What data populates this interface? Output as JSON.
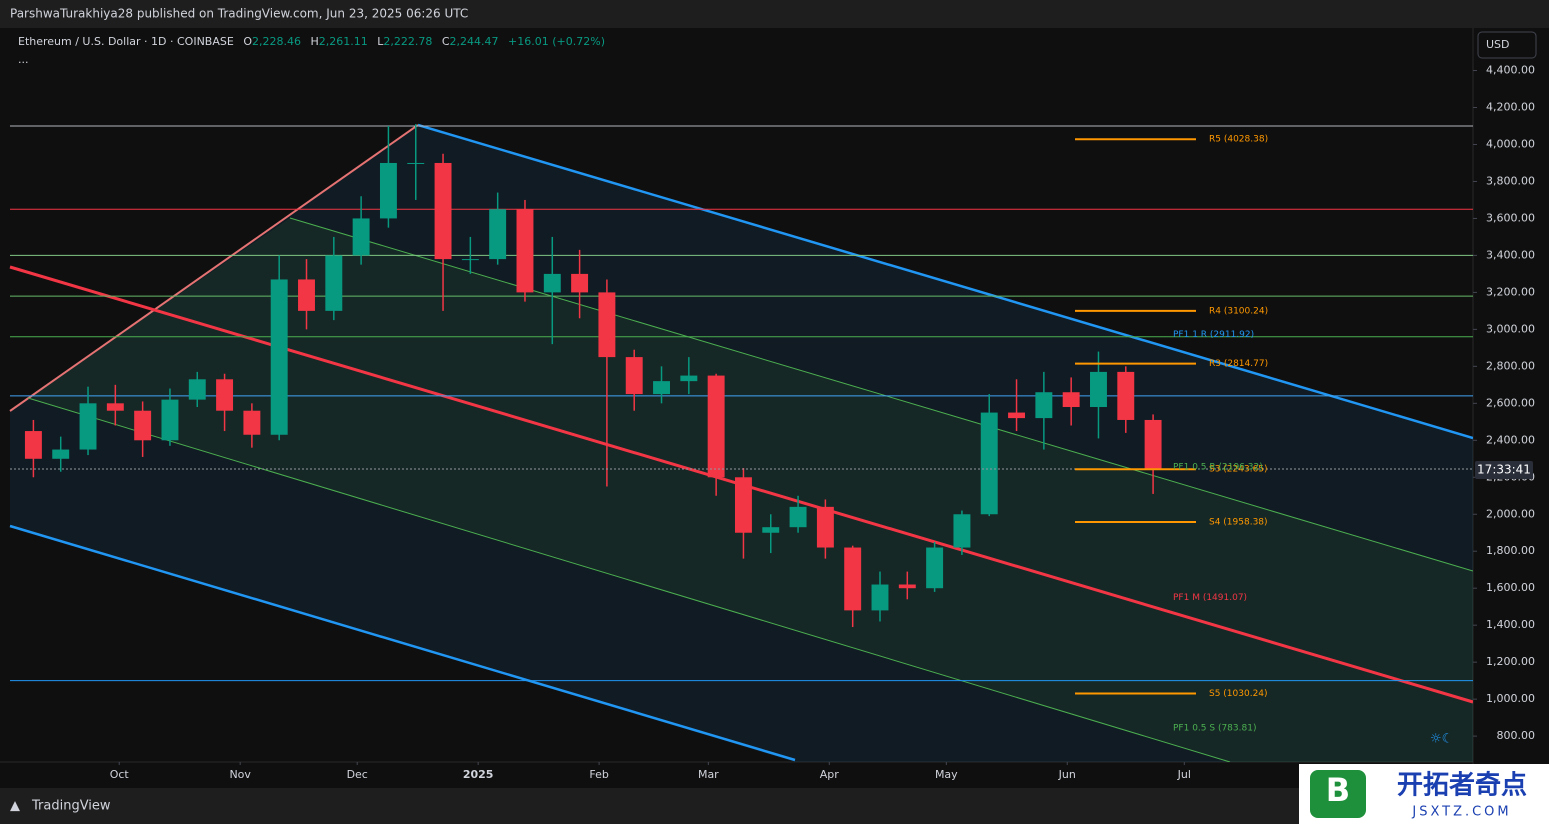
{
  "header": {
    "publisher": "ParshwaTurakhiya28 published on TradingView.com, Jun 23, 2025 06:26 UTC"
  },
  "legend": {
    "symbol": "Ethereum / U.S. Dollar · 1D · COINBASE",
    "o": "O",
    "open": "2,228.46",
    "h": "H",
    "high": "2,261.11",
    "l": "L",
    "low": "2,222.78",
    "c": "C",
    "close": "2,244.47",
    "change": "+16.01 (+0.72%)",
    "more": "..."
  },
  "currency": "USD",
  "countdown": "17:33:41",
  "footer": "TradingView",
  "watermark": {
    "name": "开拓者奇点",
    "url": "JSXTZ.COM",
    "logo": "B"
  },
  "chart_data": {
    "type": "candlestick",
    "up_color": "#089981",
    "down_color": "#f23645",
    "grid": false,
    "xlim": [
      -28,
      347
    ],
    "ylim": [
      660,
      4630
    ],
    "xticks": [
      {
        "value": 0,
        "label": "Oct"
      },
      {
        "value": 31,
        "label": "Nov"
      },
      {
        "value": 61,
        "label": "Dec"
      },
      {
        "value": 92,
        "label": "2025"
      },
      {
        "value": 123,
        "label": "Feb"
      },
      {
        "value": 151,
        "label": "Mar"
      },
      {
        "value": 182,
        "label": "Apr"
      },
      {
        "value": 212,
        "label": "May"
      },
      {
        "value": 243,
        "label": "Jun"
      },
      {
        "value": 273,
        "label": "Jul"
      }
    ],
    "yticks": [
      {
        "value": 800,
        "label": "800.00"
      },
      {
        "value": 1000,
        "label": "1,000.00"
      },
      {
        "value": 1200,
        "label": "1,200.00"
      },
      {
        "value": 1400,
        "label": "1,400.00"
      },
      {
        "value": 1600,
        "label": "1,600.00"
      },
      {
        "value": 1800,
        "label": "1,800.00"
      },
      {
        "value": 2000,
        "label": "2,000.00"
      },
      {
        "value": 2200,
        "label": "2,200.00"
      },
      {
        "value": 2400,
        "label": "2,400.00"
      },
      {
        "value": 2600,
        "label": "2,600.00"
      },
      {
        "value": 2800,
        "label": "2,800.00"
      },
      {
        "value": 3000,
        "label": "3,000.00"
      },
      {
        "value": 3200,
        "label": "3,200.00"
      },
      {
        "value": 3400,
        "label": "3,400.00"
      },
      {
        "value": 3600,
        "label": "3,600.00"
      },
      {
        "value": 3800,
        "label": "3,800.00"
      },
      {
        "value": 4000,
        "label": "4,000.00"
      },
      {
        "value": 4200,
        "label": "4,200.00"
      },
      {
        "value": 4400,
        "label": "4,400.00"
      }
    ],
    "candles": {
      "x": [
        -22,
        -15,
        -8,
        -1,
        6,
        13,
        20,
        27,
        34,
        41,
        48,
        55,
        62,
        69,
        76,
        83,
        90,
        97,
        104,
        111,
        118,
        125,
        132,
        139,
        146,
        153,
        160,
        167,
        174,
        181,
        188,
        195,
        202,
        209,
        216,
        223,
        230,
        237,
        244,
        251,
        258,
        265
      ],
      "open": [
        2450,
        2300,
        2350,
        2600,
        2560,
        2400,
        2620,
        2730,
        2560,
        2430,
        3270,
        3100,
        3400,
        3600,
        3900,
        3900,
        3380,
        3380,
        3650,
        3200,
        3300,
        3200,
        2850,
        2650,
        2720,
        2750,
        2200,
        1900,
        1930,
        2040,
        1820,
        1480,
        1620,
        1600,
        1820,
        2000,
        2550,
        2520,
        2660,
        2580,
        2770,
        2510
      ],
      "high": [
        2510,
        2420,
        2690,
        2700,
        2610,
        2680,
        2770,
        2760,
        2600,
        3400,
        3380,
        3500,
        3720,
        4100,
        4110,
        3950,
        3500,
        3740,
        3700,
        3500,
        3430,
        3270,
        2890,
        2800,
        2850,
        2760,
        2250,
        2000,
        2100,
        2080,
        1830,
        1690,
        1690,
        1850,
        2020,
        2650,
        2730,
        2770,
        2740,
        2880,
        2800,
        2540
      ],
      "low": [
        2200,
        2230,
        2320,
        2480,
        2310,
        2370,
        2580,
        2450,
        2360,
        2400,
        3000,
        3050,
        3350,
        3550,
        3700,
        3100,
        3300,
        3350,
        3150,
        2920,
        3060,
        2150,
        2560,
        2600,
        2650,
        2100,
        1760,
        1790,
        1900,
        1760,
        1390,
        1420,
        1540,
        1580,
        1780,
        1990,
        2450,
        2350,
        2480,
        2410,
        2440,
        2110
      ],
      "close": [
        2300,
        2350,
        2600,
        2560,
        2400,
        2620,
        2730,
        2560,
        2430,
        3270,
        3100,
        3400,
        3600,
        3900,
        3900,
        3380,
        3380,
        3650,
        3200,
        3300,
        3200,
        2850,
        2650,
        2720,
        2750,
        2200,
        1900,
        1930,
        2040,
        1820,
        1480,
        1620,
        1600,
        1820,
        2000,
        2550,
        2520,
        2660,
        2580,
        2770,
        2510,
        2244.47
      ]
    },
    "last_price": 2244.47,
    "horizontal_lines": [
      {
        "value": 4100,
        "color": "#b2b5be"
      },
      {
        "value": 3650,
        "color": "#f23645"
      },
      {
        "value": 3400,
        "color": "#81c784"
      },
      {
        "value": 3180,
        "color": "#66bb6a"
      },
      {
        "value": 2960,
        "color": "#4caf50"
      },
      {
        "value": 2640,
        "color": "#42a5f5"
      },
      {
        "value": 1100,
        "color": "#2196f3"
      }
    ],
    "pivots": [
      {
        "label": "R5 (4028.38)",
        "value": 4028.38
      },
      {
        "label": "R4 (3100.24)",
        "value": 3100.24
      },
      {
        "label": "R3 (2814.77)",
        "value": 2814.77
      },
      {
        "label": "S3 (2243.65)",
        "value": 2243.65
      },
      {
        "label": "S4 (1958.38)",
        "value": 1958.38
      },
      {
        "label": "S5 (1030.24)",
        "value": 1030.24
      }
    ],
    "pivot_color": "#ff9800",
    "pitchfork_labels": [
      {
        "label": "PF1 1 R (2911.92)",
        "value": 2911.92,
        "color": "#2196f3"
      },
      {
        "label": "PF1 0.5 R (2196.32)",
        "value": 2196.32,
        "color": "#4caf50"
      },
      {
        "label": "PF1 M (1491.07)",
        "value": 1491.07,
        "color": "#f23645"
      },
      {
        "label": "PF1 0.5 S (783.81)",
        "value": 783.81,
        "color": "#4caf50"
      }
    ]
  }
}
